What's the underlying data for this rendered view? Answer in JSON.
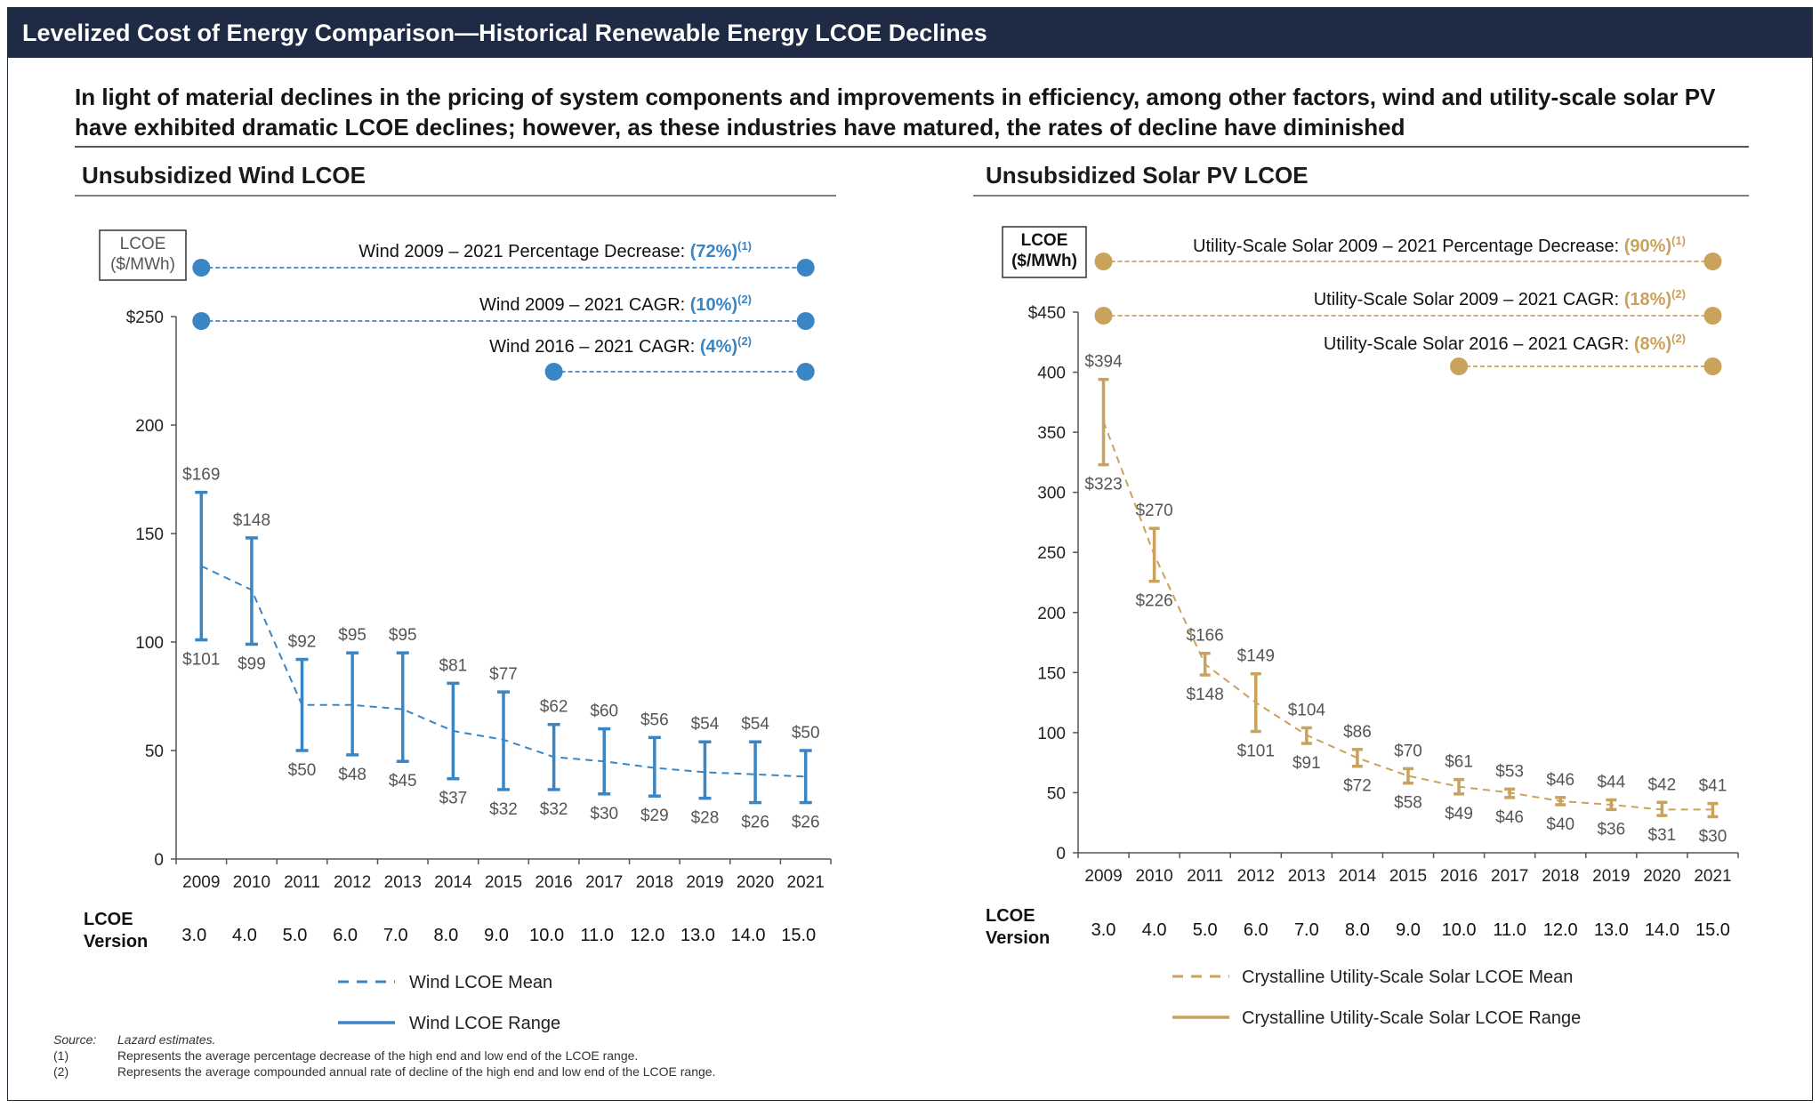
{
  "header": {
    "title": "Levelized Cost of Energy Comparison—Historical Renewable Energy LCOE Declines",
    "subtitle": "In light of material declines in the pricing of system components and improvements in efficiency, among other factors, wind and utility-scale solar PV have exhibited dramatic LCOE declines; however, as these industries have matured, the rates of decline have diminished"
  },
  "footnotes": [
    {
      "key": "Source:",
      "text": "Lazard estimates."
    },
    {
      "key": "(1)",
      "text": "Represents the average percentage decrease of the high end and low end of the LCOE range."
    },
    {
      "key": "(2)",
      "text": "Represents the average compounded annual rate of decline of the high end and low end of the LCOE range."
    }
  ],
  "chart_data": [
    {
      "type": "line",
      "title": "Unsubsidized Wind LCOE",
      "ylabel": "LCOE\n($/MWh)",
      "ylim": [
        0,
        250
      ],
      "yticks": [
        0,
        50,
        100,
        150,
        200,
        250
      ],
      "ytick_labels": [
        "0",
        "50",
        "100",
        "150",
        "200",
        "$250"
      ],
      "color": "#3a85c4",
      "categories": [
        "2009",
        "2010",
        "2011",
        "2012",
        "2013",
        "2014",
        "2015",
        "2016",
        "2017",
        "2018",
        "2019",
        "2020",
        "2021"
      ],
      "version_label": "LCOE\nVersion",
      "versions": [
        "3.0",
        "4.0",
        "5.0",
        "6.0",
        "7.0",
        "8.0",
        "9.0",
        "10.0",
        "11.0",
        "12.0",
        "13.0",
        "14.0",
        "15.0"
      ],
      "series": [
        {
          "name": "Wind LCOE Mean",
          "style": "dashed",
          "values": [
            135,
            124,
            71,
            71,
            69,
            59,
            55,
            47,
            45,
            42,
            40,
            39,
            38
          ]
        },
        {
          "name": "Wind LCOE Range",
          "style": "solid",
          "high": [
            169,
            148,
            92,
            95,
            95,
            81,
            77,
            62,
            60,
            56,
            54,
            54,
            50
          ],
          "low": [
            101,
            99,
            50,
            48,
            45,
            37,
            32,
            32,
            30,
            29,
            28,
            26,
            26
          ]
        }
      ],
      "high_labels": [
        "$169",
        "$148",
        "$92",
        "$95",
        "$95",
        "$81",
        "$77",
        "$62",
        "$60",
        "$56",
        "$54",
        "$54",
        "$50"
      ],
      "low_labels": [
        "$101",
        "$99",
        "$50",
        "$48",
        "$45",
        "$37",
        "$32",
        "$32",
        "$30",
        "$29",
        "$28",
        "$26",
        "$26"
      ],
      "annotations": [
        {
          "text": "Wind 2009 – 2021 Percentage Decrease: ",
          "value": "(72%)",
          "note": "(1)",
          "from": "2009",
          "to": "2021"
        },
        {
          "text": "Wind 2009 – 2021 CAGR: ",
          "value": "(10%)",
          "note": "(2)",
          "from": "2009",
          "to": "2021"
        },
        {
          "text": "Wind 2016 – 2021 CAGR: ",
          "value": "(4%)",
          "note": "(2)",
          "from": "2016",
          "to": "2021"
        }
      ]
    },
    {
      "type": "line",
      "title": "Unsubsidized Solar PV LCOE",
      "ylabel": "LCOE\n($/MWh)",
      "ylim": [
        0,
        450
      ],
      "yticks": [
        0,
        50,
        100,
        150,
        200,
        250,
        300,
        350,
        400,
        450
      ],
      "ytick_labels": [
        "0",
        "50",
        "100",
        "150",
        "200",
        "250",
        "300",
        "350",
        "400",
        "$450"
      ],
      "color": "#c9a25c",
      "categories": [
        "2009",
        "2010",
        "2011",
        "2012",
        "2013",
        "2014",
        "2015",
        "2016",
        "2017",
        "2018",
        "2019",
        "2020",
        "2021"
      ],
      "version_label": "LCOE\nVersion",
      "versions": [
        "3.0",
        "4.0",
        "5.0",
        "6.0",
        "7.0",
        "8.0",
        "9.0",
        "10.0",
        "11.0",
        "12.0",
        "13.0",
        "14.0",
        "15.0"
      ],
      "series": [
        {
          "name": "Crystalline Utility-Scale Solar LCOE Mean",
          "style": "dashed",
          "values": [
            359,
            248,
            157,
            125,
            98,
            79,
            64,
            55,
            50,
            43,
            40,
            36,
            36
          ]
        },
        {
          "name": "Crystalline Utility-Scale Solar LCOE Range",
          "style": "solid",
          "high": [
            394,
            270,
            166,
            149,
            104,
            86,
            70,
            61,
            53,
            46,
            44,
            42,
            41
          ],
          "low": [
            323,
            226,
            148,
            101,
            91,
            72,
            58,
            49,
            46,
            40,
            36,
            31,
            30
          ]
        }
      ],
      "high_labels": [
        "$394",
        "$270",
        "$166",
        "$149",
        "$104",
        "$86",
        "$70",
        "$61",
        "$53",
        "$46",
        "$44",
        "$42",
        "$41"
      ],
      "low_labels": [
        "$323",
        "$226",
        "$148",
        "$101",
        "$91",
        "$72",
        "$58",
        "$49",
        "$46",
        "$40",
        "$36",
        "$31",
        "$30"
      ],
      "annotations": [
        {
          "text": "Utility-Scale Solar 2009 – 2021 Percentage Decrease: ",
          "value": "(90%)",
          "note": "(1)",
          "from": "2009",
          "to": "2021"
        },
        {
          "text": "Utility-Scale Solar 2009 – 2021 CAGR: ",
          "value": "(18%)",
          "note": "(2)",
          "from": "2009",
          "to": "2021"
        },
        {
          "text": "Utility-Scale Solar 2016 – 2021 CAGR: ",
          "value": "(8%)",
          "note": "(2)",
          "from": "2016",
          "to": "2021"
        }
      ]
    }
  ]
}
